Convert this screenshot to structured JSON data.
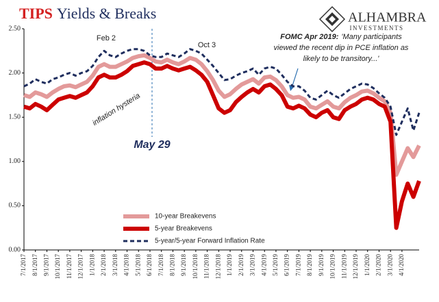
{
  "chart_data": {
    "type": "line",
    "title_highlight": "TIPS",
    "title": "Yields & Breaks",
    "logo": {
      "name": "ALHAMBRA",
      "subtitle": "INVESTMENTS"
    },
    "x": [
      "7/1/2017",
      null,
      "8/1/2017",
      null,
      "9/1/2017",
      null,
      "10/1/2017",
      null,
      "11/1/2017",
      null,
      "12/1/2017",
      null,
      "1/1/2018",
      null,
      "2/1/2018",
      null,
      "3/1/2018",
      null,
      "4/1/2018",
      null,
      "5/1/2018",
      null,
      "6/1/2018",
      null,
      "7/1/2018",
      null,
      "8/1/2018",
      null,
      "9/1/2018",
      null,
      "10/1/2018",
      null,
      "11/1/2018",
      null,
      "12/1/2018",
      null,
      "1/1/2019",
      null,
      "2/1/2019",
      null,
      "3/1/2019",
      null,
      "4/1/2019",
      null,
      "5/1/2019",
      null,
      "6/1/2019",
      null,
      "7/1/2019",
      null,
      "8/1/2019",
      null,
      "9/1/2019",
      null,
      "10/1/2019",
      null,
      "11/1/2019",
      null,
      "12/1/2019",
      null,
      "1/1/2020",
      null,
      "2/1/2020",
      null,
      "3/1/2020",
      null,
      "4/1/2020",
      null,
      null,
      null
    ],
    "series": [
      {
        "name": "10-year Breakevens",
        "color": "#e39a9a",
        "width": 6,
        "dashed": false,
        "values": [
          1.75,
          1.73,
          1.78,
          1.76,
          1.73,
          1.78,
          1.82,
          1.85,
          1.86,
          1.84,
          1.87,
          1.9,
          1.97,
          2.07,
          2.1,
          2.07,
          2.07,
          2.1,
          2.13,
          2.17,
          2.19,
          2.2,
          2.17,
          2.13,
          2.12,
          2.15,
          2.12,
          2.1,
          2.13,
          2.17,
          2.15,
          2.1,
          2.02,
          1.92,
          1.8,
          1.73,
          1.76,
          1.82,
          1.87,
          1.9,
          1.93,
          1.88,
          1.95,
          1.96,
          1.92,
          1.85,
          1.75,
          1.72,
          1.73,
          1.7,
          1.62,
          1.6,
          1.64,
          1.68,
          1.62,
          1.6,
          1.67,
          1.72,
          1.75,
          1.79,
          1.8,
          1.77,
          1.72,
          1.68,
          1.55,
          0.85,
          1.0,
          1.15,
          1.05,
          1.18
        ]
      },
      {
        "name": "5-year Breakevens",
        "color": "#cc0000",
        "width": 6,
        "dashed": false,
        "values": [
          1.62,
          1.6,
          1.65,
          1.62,
          1.58,
          1.64,
          1.7,
          1.72,
          1.74,
          1.72,
          1.75,
          1.78,
          1.85,
          1.95,
          1.98,
          1.95,
          1.95,
          1.98,
          2.02,
          2.08,
          2.1,
          2.12,
          2.1,
          2.05,
          2.05,
          2.08,
          2.05,
          2.03,
          2.05,
          2.07,
          2.03,
          1.98,
          1.9,
          1.75,
          1.6,
          1.55,
          1.58,
          1.67,
          1.73,
          1.78,
          1.82,
          1.78,
          1.85,
          1.87,
          1.82,
          1.75,
          1.62,
          1.6,
          1.63,
          1.6,
          1.53,
          1.5,
          1.55,
          1.58,
          1.5,
          1.48,
          1.58,
          1.62,
          1.65,
          1.7,
          1.72,
          1.7,
          1.65,
          1.62,
          1.45,
          0.25,
          0.55,
          0.75,
          0.6,
          0.78
        ]
      },
      {
        "name": "5-year/5-year Forward Inflation Rate",
        "color": "#1f2e5e",
        "width": 3,
        "dashed": true,
        "values": [
          1.85,
          1.88,
          1.93,
          1.9,
          1.88,
          1.93,
          1.95,
          1.98,
          2.0,
          1.97,
          2.0,
          2.02,
          2.08,
          2.18,
          2.25,
          2.2,
          2.18,
          2.22,
          2.25,
          2.27,
          2.27,
          2.25,
          2.2,
          2.18,
          2.18,
          2.22,
          2.2,
          2.18,
          2.22,
          2.27,
          2.25,
          2.22,
          2.15,
          2.08,
          2.0,
          1.92,
          1.93,
          1.97,
          2.0,
          2.02,
          2.05,
          1.98,
          2.05,
          2.07,
          2.05,
          1.98,
          1.9,
          1.85,
          1.85,
          1.8,
          1.72,
          1.7,
          1.75,
          1.8,
          1.75,
          1.72,
          1.77,
          1.82,
          1.85,
          1.88,
          1.87,
          1.83,
          1.77,
          1.72,
          1.62,
          1.3,
          1.45,
          1.6,
          1.35,
          1.55
        ]
      }
    ],
    "ylim": [
      0,
      2.5
    ],
    "yticks": [
      {
        "value": 0,
        "label": "0.00"
      },
      {
        "value": 0.5,
        "label": "0.50"
      },
      {
        "value": 1,
        "label": "1.00"
      },
      {
        "value": 1.5,
        "label": "1.50"
      },
      {
        "value": 2,
        "label": "2.00"
      },
      {
        "value": 2.5,
        "label": "2.50"
      }
    ],
    "grid": false,
    "legend_position": "lower left",
    "annotations": {
      "feb": "Feb 2",
      "oct": "Oct 3",
      "hysteria": "inflation hysteria",
      "may": "May 29",
      "fomc_head": "FOMC Apr 2019:",
      "fomc_lines": [
        "'Many participants",
        "viewed the recent dip in PCE inflation as",
        "likely to be transitory...'"
      ]
    }
  }
}
